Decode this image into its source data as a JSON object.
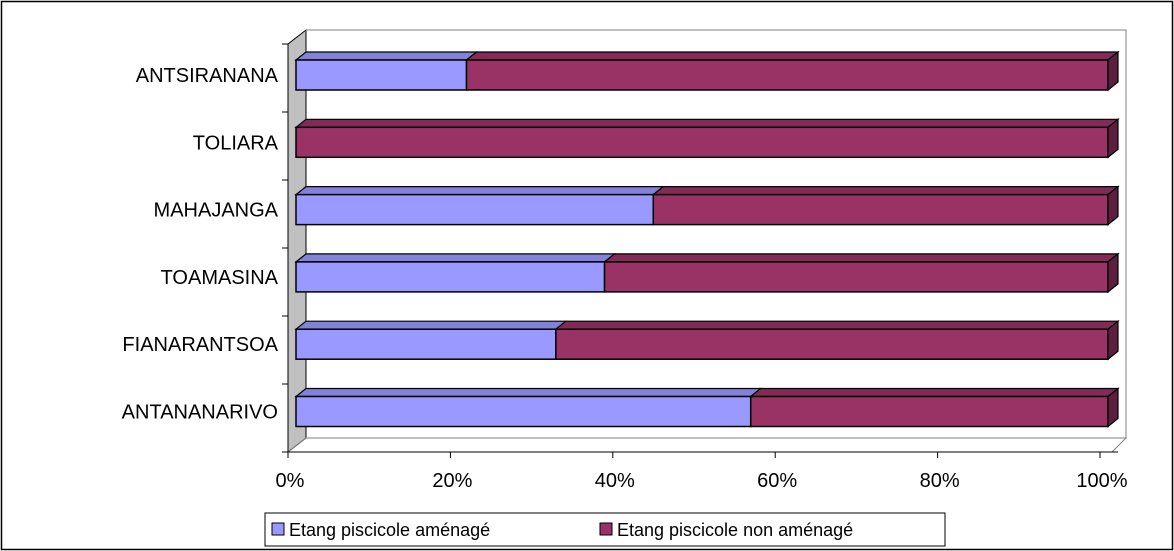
{
  "chart_data": {
    "type": "bar",
    "orientation": "horizontal",
    "stacked": "percent",
    "three_d": true,
    "categories": [
      "ANTSIRANANA",
      "TOLIARA",
      "MAHAJANGA",
      "TOAMASINA",
      "FIANARANTSOA",
      "ANTANANARIVO"
    ],
    "series": [
      {
        "name": "Etang piscicole aménagé",
        "color": "#9999ff",
        "values": [
          21,
          0,
          44,
          38,
          32,
          56
        ]
      },
      {
        "name": "Etang piscicole non aménagé",
        "color": "#993366",
        "values": [
          79,
          100,
          56,
          62,
          68,
          44
        ]
      }
    ],
    "x_ticks": [
      "0%",
      "20%",
      "40%",
      "60%",
      "80%",
      "100%"
    ],
    "xlim": [
      0,
      100
    ],
    "grid": false,
    "legend_position": "bottom",
    "wall_color": "#c0c0c0"
  }
}
